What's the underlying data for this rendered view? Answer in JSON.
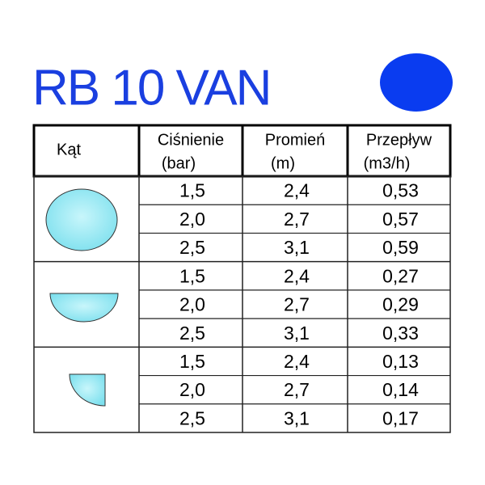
{
  "header": {
    "title": "RB 10 VAN"
  },
  "table": {
    "angle_header": "Kąt",
    "columns": [
      {
        "name": "Ciśnienie",
        "unit": "(bar)"
      },
      {
        "name": "Promień",
        "unit": "(m)"
      },
      {
        "name": "Przepływ",
        "unit": "(m3/h)"
      }
    ],
    "groups": [
      {
        "rows": [
          [
            "1,5",
            "2,4",
            "0,53"
          ],
          [
            "2,0",
            "2,7",
            "0,57"
          ],
          [
            "2,5",
            "3,1",
            "0,59"
          ]
        ]
      },
      {
        "rows": [
          [
            "1,5",
            "2,4",
            "0,27"
          ],
          [
            "2,0",
            "2,7",
            "0,29"
          ],
          [
            "2,5",
            "3,1",
            "0,33"
          ]
        ]
      },
      {
        "rows": [
          [
            "1,5",
            "2,4",
            "0,13"
          ],
          [
            "2,0",
            "2,7",
            "0,14"
          ],
          [
            "2,5",
            "3,1",
            "0,17"
          ]
        ]
      }
    ]
  }
}
